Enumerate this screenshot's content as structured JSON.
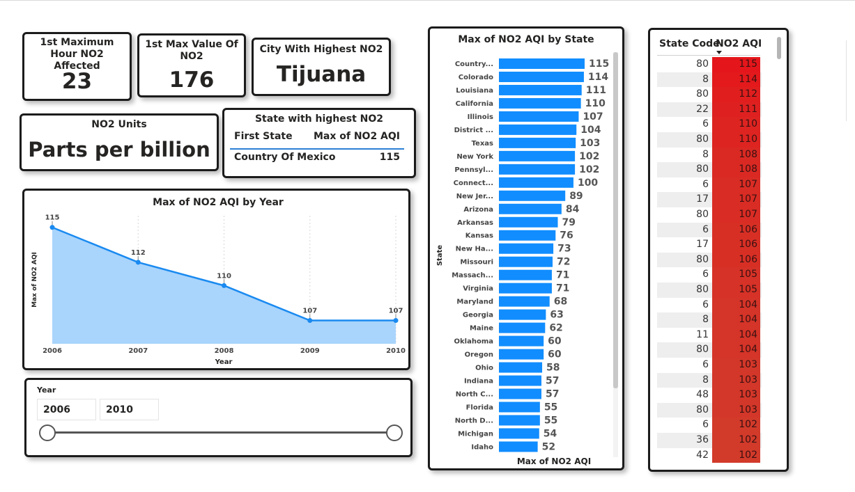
{
  "kpis": {
    "max_hour_title": "1st Maximum Hour NO2 Affected",
    "max_hour_value": "23",
    "max_value_title": "1st Max Value Of NO2",
    "max_value_value": "176",
    "city_title": "City With Highest NO2",
    "city_value": "Tijuana",
    "units_title": "NO2 Units",
    "units_value": "Parts per billion"
  },
  "state_table": {
    "title": "State with highest NO2",
    "col1_header": "First State",
    "col2_header": "Max of NO2 AQI",
    "row_state": "Country Of Mexico",
    "row_value": "115"
  },
  "year_chart": {
    "title": "Max of NO2 AQI by Year",
    "ylabel": "Max of NO2 AQI",
    "xlabel": "Year"
  },
  "year_slicer": {
    "label": "Year",
    "start": "2006",
    "end": "2010",
    "range_fraction": [
      0,
      1
    ]
  },
  "state_chart": {
    "title": "Max of NO2 AQI by State",
    "ylabel": "State",
    "xlabel": "Max of NO2 AQI"
  },
  "code_table": {
    "col1_header": "State Code",
    "col2_header": "NO2 AQI",
    "rows": [
      {
        "code": "80",
        "aqi": "115"
      },
      {
        "code": "8",
        "aqi": "114"
      },
      {
        "code": "80",
        "aqi": "112"
      },
      {
        "code": "22",
        "aqi": "111"
      },
      {
        "code": "6",
        "aqi": "110"
      },
      {
        "code": "80",
        "aqi": "110"
      },
      {
        "code": "8",
        "aqi": "108"
      },
      {
        "code": "80",
        "aqi": "108"
      },
      {
        "code": "6",
        "aqi": "107"
      },
      {
        "code": "17",
        "aqi": "107"
      },
      {
        "code": "80",
        "aqi": "107"
      },
      {
        "code": "6",
        "aqi": "106"
      },
      {
        "code": "17",
        "aqi": "106"
      },
      {
        "code": "80",
        "aqi": "106"
      },
      {
        "code": "6",
        "aqi": "105"
      },
      {
        "code": "80",
        "aqi": "105"
      },
      {
        "code": "6",
        "aqi": "104"
      },
      {
        "code": "8",
        "aqi": "104"
      },
      {
        "code": "11",
        "aqi": "104"
      },
      {
        "code": "80",
        "aqi": "104"
      },
      {
        "code": "6",
        "aqi": "103"
      },
      {
        "code": "8",
        "aqi": "103"
      },
      {
        "code": "48",
        "aqi": "103"
      },
      {
        "code": "80",
        "aqi": "103"
      },
      {
        "code": "6",
        "aqi": "102"
      },
      {
        "code": "36",
        "aqi": "102"
      },
      {
        "code": "42",
        "aqi": "102"
      }
    ]
  },
  "colors": {
    "bar_blue": "#118dff",
    "area_fill": "#a9d4fc",
    "line_blue": "#1a8af0",
    "heat_high": "#e4161b",
    "heat_low": "#d43a2a"
  },
  "chart_data": [
    {
      "type": "area",
      "title": "Max of NO2 AQI by Year",
      "xlabel": "Year",
      "ylabel": "Max of NO2 AQI",
      "x": [
        "2006",
        "2007",
        "2008",
        "2009",
        "2010"
      ],
      "values": [
        115,
        112,
        110,
        107,
        107
      ],
      "ylim": [
        105,
        116
      ],
      "grid": "vertical dotted"
    },
    {
      "type": "bar",
      "orientation": "horizontal",
      "title": "Max of NO2 AQI by State",
      "xlabel": "Max of NO2 AQI",
      "ylabel": "State",
      "categories": [
        "Country...",
        "Colorado",
        "Louisiana",
        "California",
        "Illinois",
        "District ...",
        "Texas",
        "New York",
        "Pennsyl...",
        "Connect...",
        "New Jer...",
        "Arizona",
        "Arkansas",
        "Kansas",
        "New Ha...",
        "Missouri",
        "Massach...",
        "Virginia",
        "Maryland",
        "Georgia",
        "Maine",
        "Oklahoma",
        "Oregon",
        "Ohio",
        "Indiana",
        "North C...",
        "Florida",
        "North D...",
        "Michigan",
        "Idaho"
      ],
      "values": [
        115,
        114,
        111,
        110,
        107,
        104,
        103,
        102,
        102,
        100,
        89,
        84,
        79,
        76,
        73,
        72,
        71,
        71,
        68,
        63,
        62,
        60,
        60,
        58,
        57,
        57,
        55,
        55,
        54,
        52
      ],
      "xlim": [
        0,
        115
      ]
    }
  ]
}
